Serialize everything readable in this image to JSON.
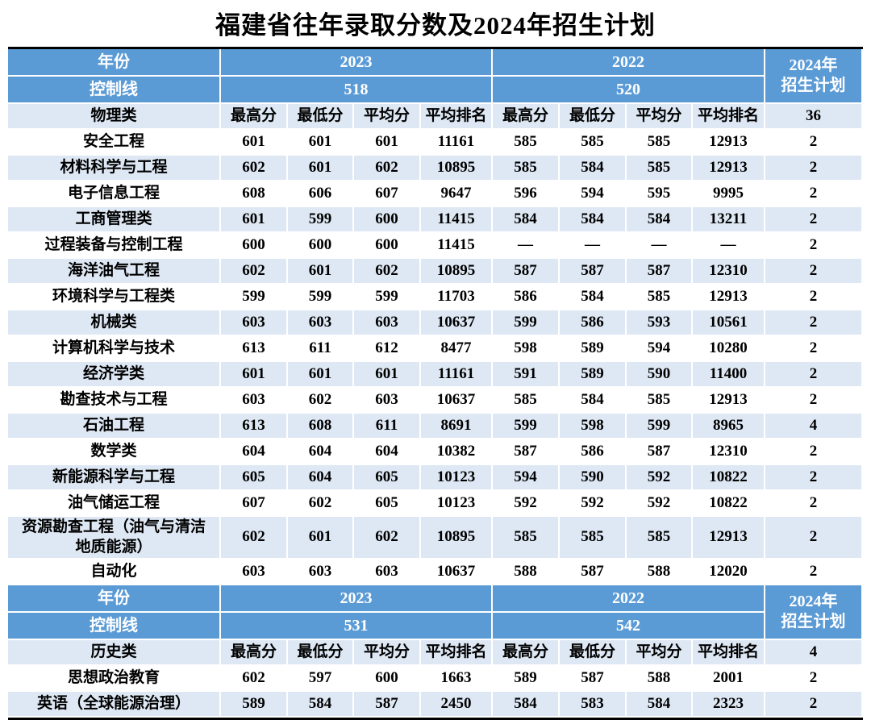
{
  "page_title": "福建省往年录取分数及2024年招生计划",
  "colors": {
    "header_blue": "#5B9BD5",
    "band_light": "#DEE8F4",
    "header_text": "#FFFFFF",
    "border_black": "#000000"
  },
  "table": {
    "sections": [
      {
        "year_row": {
          "label": "年份",
          "year_left": "2023",
          "year_right": "2022",
          "plan_line1": "2024年",
          "plan_line2": "招生计划"
        },
        "control_row": {
          "label": "控制线",
          "value_left": "518",
          "value_right": "520"
        },
        "category_row": {
          "label": "物理类",
          "stat_headers": [
            "最高分",
            "最低分",
            "平均分",
            "平均排名",
            "最高分",
            "最低分",
            "平均分",
            "平均排名"
          ],
          "plan": "36"
        },
        "rows": [
          {
            "name": "安全工程",
            "values": [
              "601",
              "601",
              "601",
              "11161",
              "585",
              "585",
              "585",
              "12913",
              "2"
            ]
          },
          {
            "name": "材料科学与工程",
            "values": [
              "602",
              "601",
              "602",
              "10895",
              "585",
              "584",
              "585",
              "12913",
              "2"
            ]
          },
          {
            "name": "电子信息工程",
            "values": [
              "608",
              "606",
              "607",
              "9647",
              "596",
              "594",
              "595",
              "9995",
              "2"
            ]
          },
          {
            "name": "工商管理类",
            "values": [
              "601",
              "599",
              "600",
              "11415",
              "584",
              "584",
              "584",
              "13211",
              "2"
            ]
          },
          {
            "name": "过程装备与控制工程",
            "values": [
              "600",
              "600",
              "600",
              "11415",
              "—",
              "—",
              "—",
              "—",
              "2"
            ]
          },
          {
            "name": "海洋油气工程",
            "values": [
              "602",
              "601",
              "602",
              "10895",
              "587",
              "587",
              "587",
              "12310",
              "2"
            ]
          },
          {
            "name": "环境科学与工程类",
            "values": [
              "599",
              "599",
              "599",
              "11703",
              "586",
              "584",
              "585",
              "12913",
              "2"
            ]
          },
          {
            "name": "机械类",
            "values": [
              "603",
              "603",
              "603",
              "10637",
              "599",
              "586",
              "593",
              "10561",
              "2"
            ]
          },
          {
            "name": "计算机科学与技术",
            "values": [
              "613",
              "611",
              "612",
              "8477",
              "598",
              "589",
              "594",
              "10280",
              "2"
            ]
          },
          {
            "name": "经济学类",
            "values": [
              "601",
              "601",
              "601",
              "11161",
              "591",
              "589",
              "590",
              "11400",
              "2"
            ]
          },
          {
            "name": "勘查技术与工程",
            "values": [
              "603",
              "602",
              "603",
              "10637",
              "585",
              "584",
              "585",
              "12913",
              "2"
            ]
          },
          {
            "name": "石油工程",
            "values": [
              "613",
              "608",
              "611",
              "8691",
              "599",
              "598",
              "599",
              "8965",
              "4"
            ]
          },
          {
            "name": "数学类",
            "values": [
              "604",
              "604",
              "604",
              "10382",
              "587",
              "586",
              "587",
              "12310",
              "2"
            ]
          },
          {
            "name": "新能源科学与工程",
            "values": [
              "605",
              "604",
              "605",
              "10123",
              "594",
              "590",
              "592",
              "10822",
              "2"
            ]
          },
          {
            "name": "油气储运工程",
            "values": [
              "607",
              "602",
              "605",
              "10123",
              "592",
              "592",
              "592",
              "10822",
              "2"
            ]
          },
          {
            "name": "资源勘查工程（油气与清洁地质能源）",
            "values": [
              "602",
              "601",
              "602",
              "10895",
              "585",
              "585",
              "585",
              "12913",
              "2"
            ]
          },
          {
            "name": "自动化",
            "values": [
              "603",
              "603",
              "603",
              "10637",
              "588",
              "587",
              "588",
              "12020",
              "2"
            ]
          }
        ]
      },
      {
        "year_row": {
          "label": "年份",
          "year_left": "2023",
          "year_right": "2022",
          "plan_line1": "2024年",
          "plan_line2": "招生计划"
        },
        "control_row": {
          "label": "控制线",
          "value_left": "531",
          "value_right": "542"
        },
        "category_row": {
          "label": "历史类",
          "stat_headers": [
            "最高分",
            "最低分",
            "平均分",
            "平均排名",
            "最高分",
            "最低分",
            "平均分",
            "平均排名"
          ],
          "plan": "4"
        },
        "rows": [
          {
            "name": "思想政治教育",
            "values": [
              "602",
              "597",
              "600",
              "1663",
              "589",
              "587",
              "588",
              "2001",
              "2"
            ]
          },
          {
            "name": "英语（全球能源治理）",
            "values": [
              "589",
              "584",
              "587",
              "2450",
              "584",
              "583",
              "584",
              "2323",
              "2"
            ]
          }
        ]
      }
    ]
  }
}
